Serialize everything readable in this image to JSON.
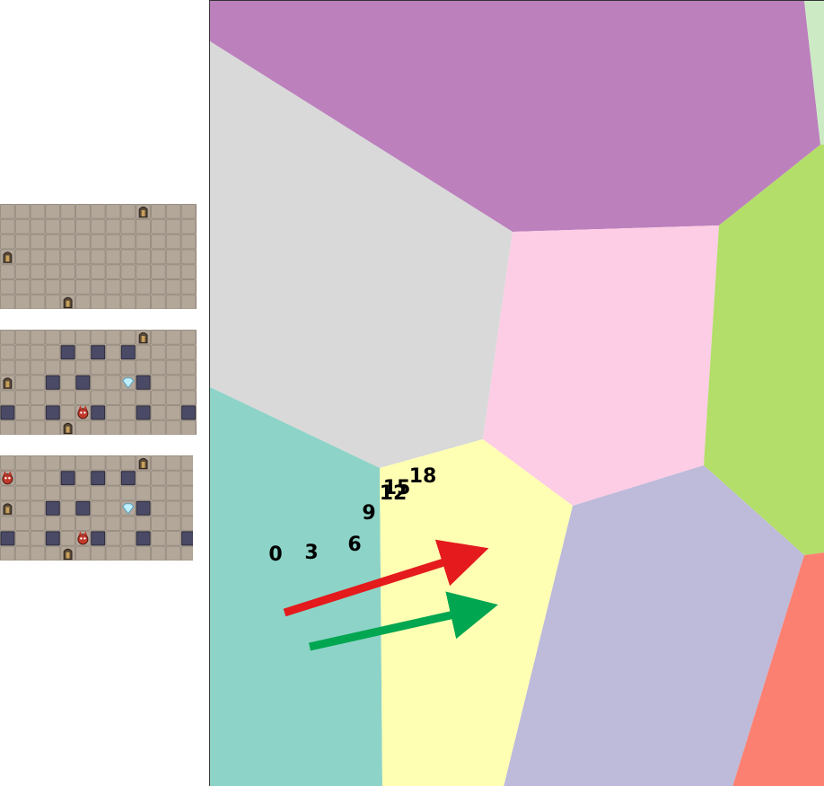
{
  "colors": {
    "background": "#ffffff",
    "tile_light": "#b3a79a",
    "tile_grout": "#9a8f83",
    "wall_block": "#4a4a66",
    "door": "#5a4a3a",
    "region_purple": "#bc80bd",
    "region_gray": "#d9d9d9",
    "region_pink": "#fccde5",
    "region_teal": "#8dd3c7",
    "region_yellow": "#ffffb3",
    "region_lavender": "#bebada",
    "region_green": "#b3de69",
    "region_salmon": "#fb8072",
    "region_mint": "#ccebc5",
    "arrow_red": "#e41a1c",
    "arrow_green": "#00a650"
  },
  "game_panels": [
    {
      "name": "panel-1",
      "doors": [
        [
          9,
          0
        ],
        [
          0,
          3
        ],
        [
          4,
          6
        ]
      ],
      "walls": [],
      "enemies": [],
      "gems": []
    },
    {
      "name": "panel-2",
      "doors": [
        [
          9,
          0
        ],
        [
          0,
          3
        ],
        [
          4,
          6
        ]
      ],
      "walls": [
        [
          4,
          1
        ],
        [
          6,
          1
        ],
        [
          8,
          1
        ],
        [
          3,
          3
        ],
        [
          5,
          3
        ],
        [
          9,
          3
        ],
        [
          0,
          5
        ],
        [
          3,
          5
        ],
        [
          6,
          5
        ],
        [
          9,
          5
        ],
        [
          12,
          5
        ]
      ],
      "enemies": [
        [
          5,
          5
        ]
      ],
      "gems": [
        [
          8,
          3
        ]
      ]
    },
    {
      "name": "panel-3",
      "doors": [
        [
          9,
          0
        ],
        [
          0,
          3
        ],
        [
          4,
          6
        ]
      ],
      "walls": [
        [
          4,
          1
        ],
        [
          6,
          1
        ],
        [
          8,
          1
        ],
        [
          3,
          3
        ],
        [
          5,
          3
        ],
        [
          9,
          3
        ],
        [
          0,
          5
        ],
        [
          3,
          5
        ],
        [
          6,
          5
        ],
        [
          9,
          5
        ],
        [
          12,
          5
        ]
      ],
      "enemies": [
        [
          5,
          5
        ],
        [
          0,
          1
        ]
      ],
      "gems": [
        [
          8,
          3
        ]
      ]
    }
  ],
  "step_labels": [
    {
      "text": "0"
    },
    {
      "text": "3"
    },
    {
      "text": "6"
    },
    {
      "text": "9"
    },
    {
      "text": "12"
    },
    {
      "text": "15"
    },
    {
      "text": "18"
    }
  ]
}
